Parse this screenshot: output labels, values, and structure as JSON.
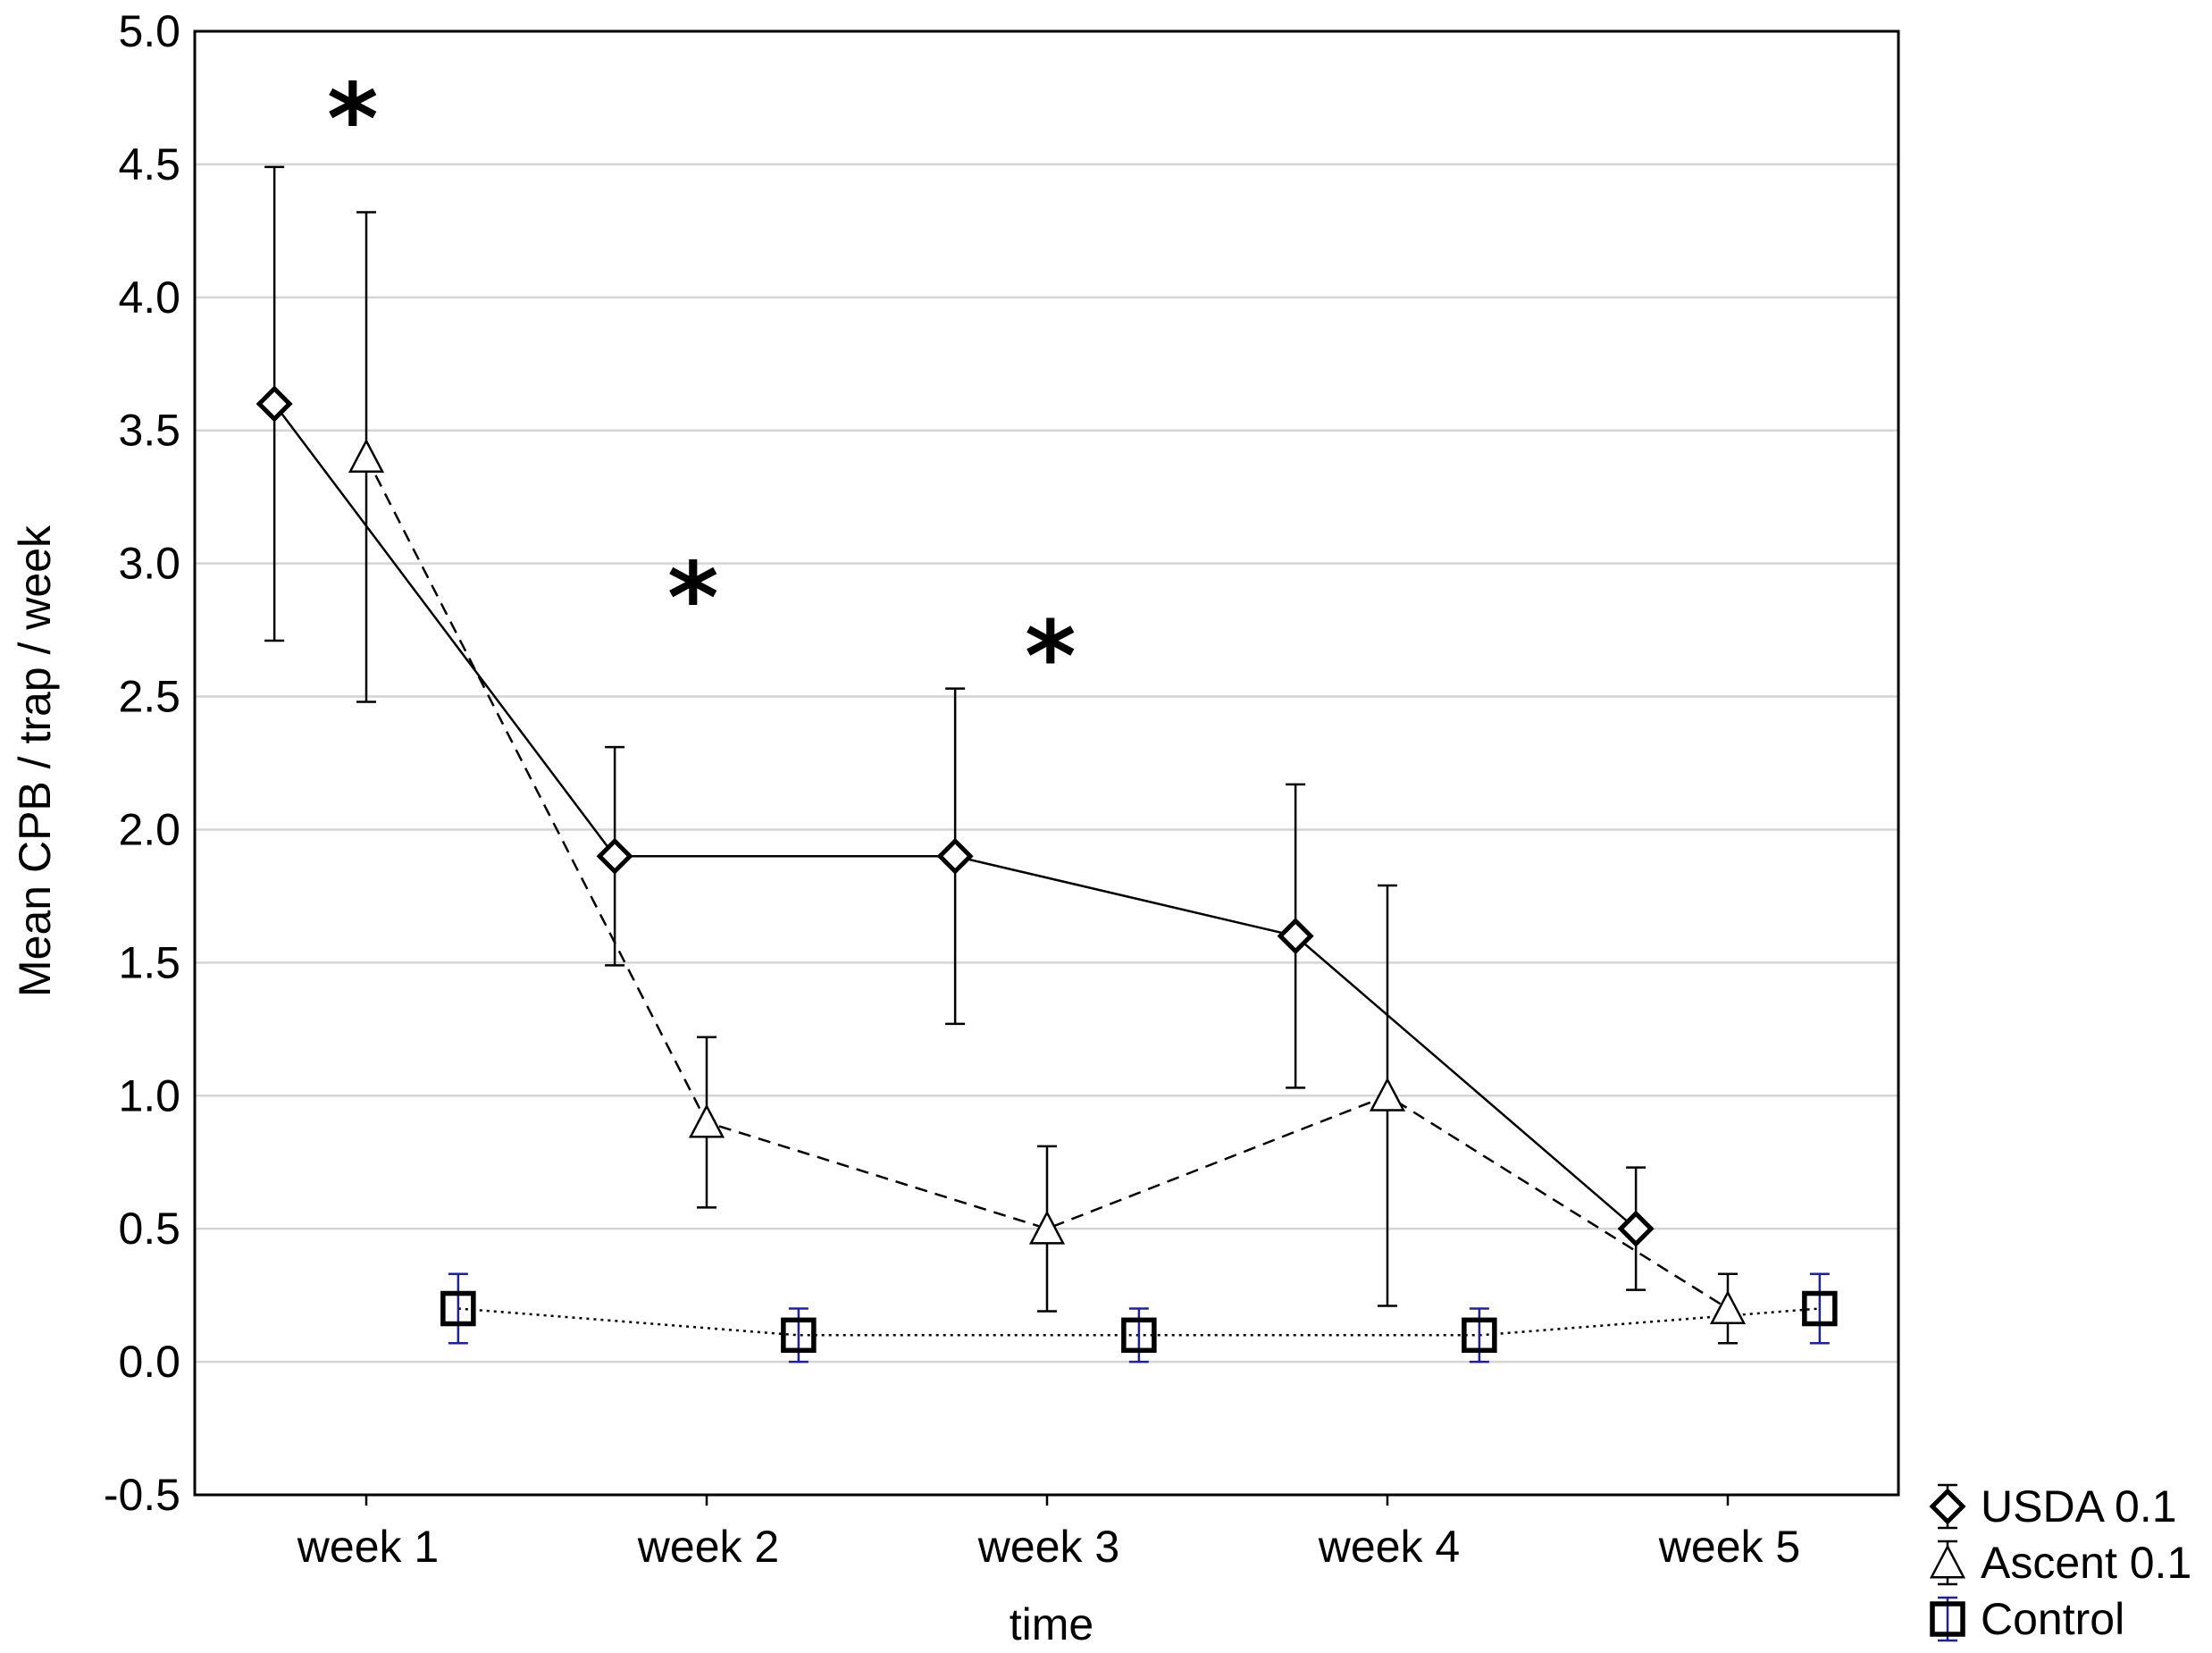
{
  "chart_data": {
    "type": "line",
    "title": "",
    "xlabel": "time",
    "ylabel": "Mean CPB / trap / week",
    "categories": [
      "week 1",
      "week 2",
      "week 3",
      "week 4",
      "week 5"
    ],
    "ylim": [
      -0.5,
      5.0
    ],
    "yticks": [
      "5.0",
      "4.5",
      "4.0",
      "3.5",
      "3.0",
      "2.5",
      "2.0",
      "1.5",
      "1.0",
      "0.5",
      "0.0",
      "-0.5"
    ],
    "ytick_values": [
      5.0,
      4.5,
      4.0,
      3.5,
      3.0,
      2.5,
      2.0,
      1.5,
      1.0,
      0.5,
      0.0,
      -0.5
    ],
    "grid": true,
    "legend_position": "bottom-right, outside plot",
    "series": [
      {
        "name": "USDA 0.1",
        "marker": "diamond",
        "line_style": "solid",
        "offset": -0.27,
        "color": "#000000",
        "errorbar_color": "#000000",
        "values": [
          3.6,
          1.9,
          1.9,
          1.6,
          0.5
        ],
        "err_low": [
          2.71,
          1.49,
          1.27,
          1.03,
          0.27
        ],
        "err_high": [
          4.49,
          2.31,
          2.53,
          2.17,
          0.73
        ]
      },
      {
        "name": "Ascent 0.1",
        "marker": "triangle",
        "line_style": "dashed",
        "offset": 0.0,
        "color": "#000000",
        "errorbar_color": "#000000",
        "values": [
          3.4,
          0.9,
          0.5,
          1.0,
          0.2
        ],
        "err_low": [
          2.48,
          0.58,
          0.19,
          0.21,
          0.07
        ],
        "err_high": [
          4.32,
          1.22,
          0.81,
          1.79,
          0.33
        ]
      },
      {
        "name": "Control",
        "marker": "square",
        "line_style": "dotted",
        "offset": 0.27,
        "color": "#000000",
        "errorbar_color": "#1f1fa8",
        "values": [
          0.2,
          0.1,
          0.1,
          0.1,
          0.2
        ],
        "err_low": [
          0.07,
          0.0,
          0.0,
          0.0,
          0.07
        ],
        "err_high": [
          0.33,
          0.2,
          0.2,
          0.2,
          0.33
        ]
      }
    ],
    "annotations": [
      {
        "text": "*",
        "x": -0.04,
        "y": 4.75
      },
      {
        "text": "*",
        "x": 0.96,
        "y": 2.95
      },
      {
        "text": "*",
        "x": 2.01,
        "y": 2.73
      }
    ]
  }
}
